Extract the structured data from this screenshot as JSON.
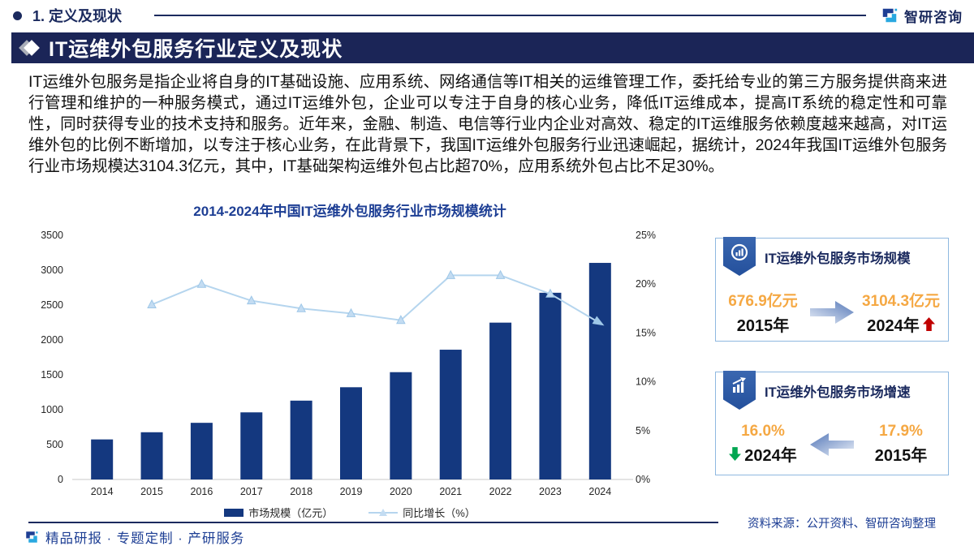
{
  "header": {
    "section_label": "1. 定义及现状",
    "brand_name": "智研咨询"
  },
  "title_bar": {
    "title": "IT运维外包服务行业定义及现状"
  },
  "intro": {
    "text": "IT运维外包服务是指企业将自身的IT基础设施、应用系统、网络通信等IT相关的运维管理工作，委托给专业的第三方服务提供商来进行管理和维护的一种服务模式，通过IT运维外包，企业可以专注于自身的核心业务，降低IT运维成本，提高IT系统的稳定性和可靠性，同时获得专业的技术支持和服务。近年来，金融、制造、电信等行业内企业对高效、稳定的IT运维服务依赖度越来越高，对IT运维外包的比例不断增加，以专注于核心业务，在此背景下，我国IT运维外包服务行业迅速崛起，据统计，2024年我国IT运维外包服务行业市场规模达3104.3亿元，其中，IT基础架构运维外包占比超70%，应用系统外包占比不足30%。"
  },
  "chart_data": {
    "type": "bar",
    "title": "2014-2024年中国IT运维外包服务行业市场规模统计",
    "categories": [
      "2014",
      "2015",
      "2016",
      "2017",
      "2018",
      "2019",
      "2020",
      "2021",
      "2022",
      "2023",
      "2024"
    ],
    "series": [
      {
        "name": "市场规模（亿元）",
        "type": "bar",
        "axis": "left",
        "color": "#14387f",
        "values": [
          574,
          676.9,
          812,
          962,
          1130,
          1322,
          1538,
          1860,
          2248,
          2676,
          3104.3
        ]
      },
      {
        "name": "同比增长（%）",
        "type": "line",
        "axis": "right",
        "color": "#b5d5ee",
        "values": [
          null,
          17.9,
          20.0,
          18.3,
          17.5,
          17.0,
          16.3,
          20.9,
          20.9,
          19.0,
          16.0
        ]
      }
    ],
    "left_axis": {
      "min": 0,
      "max": 3500,
      "step": 500
    },
    "right_axis": {
      "min": 0,
      "max": 25,
      "step": 5,
      "suffix": "%"
    },
    "grid": false,
    "legend_position": "bottom"
  },
  "cards": [
    {
      "title": "IT运维外包服务市场规模",
      "icon": "doughnut-chart-icon",
      "from": {
        "value": "676.9亿元",
        "year": "2015年"
      },
      "to": {
        "value": "3104.3亿元",
        "year": "2024年",
        "trend": "up"
      },
      "arrow_direction": "right"
    },
    {
      "title": "IT运维外包服务市场增速",
      "icon": "growth-chart-icon",
      "from": {
        "value": "17.9%",
        "year": "2015年"
      },
      "to": {
        "value": "16.0%",
        "year": "2024年",
        "trend": "down"
      },
      "arrow_direction": "left"
    }
  ],
  "source": {
    "text": "资料来源：公开资料、智研咨询整理"
  },
  "footer": {
    "tagline": "精品研报 · 专题定制 · 产研服务"
  },
  "colors": {
    "navy": "#1b2557",
    "bar_blue": "#14387f",
    "line_blue": "#b5d5ee",
    "accent_blue": "#1d3e94",
    "orange": "#f5a843",
    "red": "#c00000",
    "green": "#00a651",
    "card_border": "#8fb8e0",
    "logo_cyan": "#29a8e0"
  }
}
